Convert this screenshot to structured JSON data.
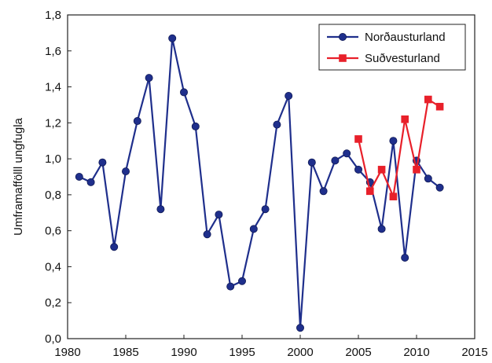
{
  "chart_data": {
    "type": "line",
    "title": "",
    "xlabel": "",
    "ylabel": "Umframaffölll ungfugla",
    "xlim": [
      1980,
      2015
    ],
    "ylim": [
      0,
      1.8
    ],
    "x_ticks": [
      1980,
      1985,
      1990,
      1995,
      2000,
      2005,
      2010,
      2015
    ],
    "y_ticks": [
      "0,0",
      "0,2",
      "0,4",
      "0,6",
      "0,8",
      "1,0",
      "1,2",
      "1,4",
      "1,6",
      "1,8"
    ],
    "grid": false,
    "legend_position": "top-right",
    "series": [
      {
        "name": "Norðausturland",
        "color": "#1f2f8c",
        "marker": "circle",
        "x": [
          1981,
          1982,
          1983,
          1984,
          1985,
          1986,
          1987,
          1988,
          1989,
          1990,
          1991,
          1992,
          1993,
          1994,
          1995,
          1996,
          1997,
          1998,
          1999,
          2000,
          2001,
          2002,
          2003,
          2004,
          2005,
          2006,
          2007,
          2008,
          2009,
          2010,
          2011,
          2012
        ],
        "values": [
          0.9,
          0.87,
          0.98,
          0.51,
          0.93,
          1.21,
          1.45,
          0.72,
          1.67,
          1.37,
          1.18,
          0.58,
          0.69,
          0.29,
          0.32,
          0.61,
          0.72,
          1.19,
          1.35,
          0.06,
          0.98,
          0.82,
          0.99,
          1.03,
          0.94,
          0.87,
          0.61,
          1.1,
          0.45,
          0.99,
          0.89,
          0.84
        ]
      },
      {
        "name": "Suðvesturland",
        "color": "#e8202a",
        "marker": "square",
        "x": [
          2005,
          2006,
          2007,
          2008,
          2009,
          2010,
          2011,
          2012
        ],
        "values": [
          1.11,
          0.82,
          0.94,
          0.79,
          1.22,
          0.94,
          1.33,
          1.29
        ]
      }
    ]
  }
}
